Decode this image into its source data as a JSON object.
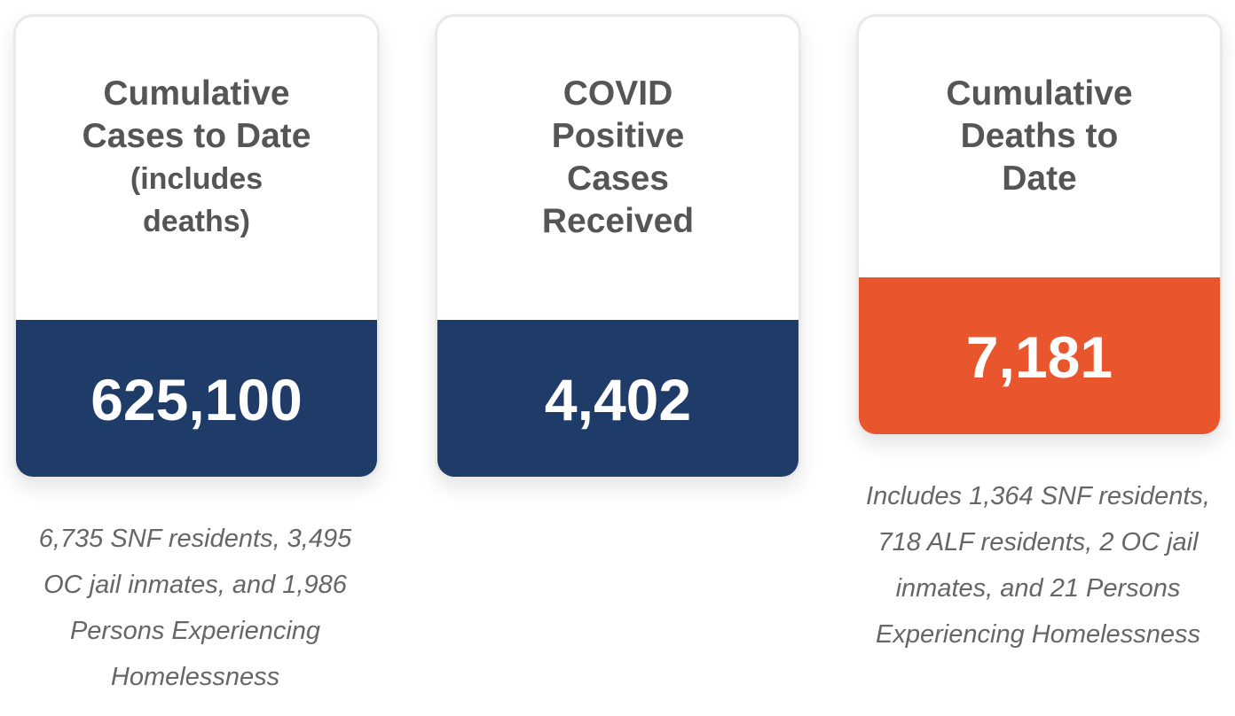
{
  "colors": {
    "navy": "#1f3c68",
    "orange": "#e9562d",
    "title_gray": "#555555",
    "note_gray": "#666666"
  },
  "cards": [
    {
      "title": "Cumulative Cases to Date",
      "subtitle": "(includes deaths)",
      "value": "625,100",
      "note": "6,735 SNF residents, 3,495 OC jail inmates, and 1,986 Persons Experiencing Homelessness"
    },
    {
      "title": "COVID Positive Cases Received",
      "value": "4,402"
    },
    {
      "title": "Cumulative Deaths to Date",
      "value": "7,181",
      "note": "Includes 1,364 SNF residents, 718 ALF residents, 2 OC jail inmates, and 21 Persons Experiencing Homelessness"
    }
  ]
}
